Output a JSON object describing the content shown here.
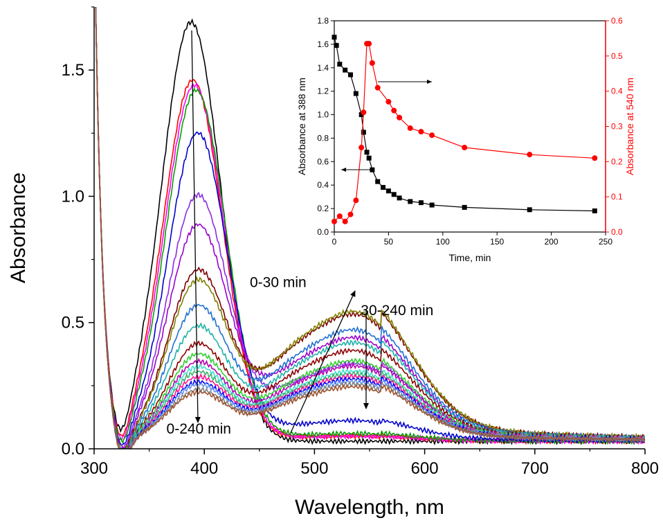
{
  "chart_data": [
    {
      "type": "line",
      "xlabel": "Wavelength, nm",
      "ylabel": "Absorbance",
      "xlim": [
        300,
        800
      ],
      "ylim": [
        0,
        1.75
      ],
      "xticks": [
        300,
        400,
        500,
        600,
        700,
        800
      ],
      "xtick_labels": [
        "300",
        "400",
        "500",
        "600",
        "700",
        "800"
      ],
      "yticks": [
        0,
        0.5,
        1.0,
        1.5
      ],
      "ytick_labels": [
        "0.0",
        "0.5",
        "1.0",
        "1.5"
      ],
      "grid": false,
      "annotations": [
        {
          "text": "0-240 min",
          "x": 395,
          "y": 0.06
        },
        {
          "text": "0-30 min",
          "x": 467,
          "y": 0.64
        },
        {
          "text": "30-240 min",
          "x": 575,
          "y": 0.53
        }
      ],
      "series": [
        {
          "color": "#000000",
          "peak1": 1.66,
          "band2": 0.0
        },
        {
          "color": "#ff0000",
          "peak1": 1.43,
          "band2": 0.02
        },
        {
          "color": "#ff00ff",
          "peak1": 1.41,
          "band2": 0.02
        },
        {
          "color": "#00a000",
          "peak1": 1.39,
          "band2": 0.03
        },
        {
          "color": "#0000cc",
          "peak1": 1.22,
          "band2": 0.08
        },
        {
          "color": "#8a2be2",
          "peak1": 0.97,
          "band2": 0.3
        },
        {
          "color": "#9900cc",
          "peak1": 0.85,
          "band2": 0.4
        },
        {
          "color": "#7b0000",
          "peak1": 0.67,
          "band2": 0.49
        },
        {
          "color": "#808000",
          "peak1": 0.63,
          "band2": 0.5
        },
        {
          "color": "#1f6fd1",
          "peak1": 0.53,
          "band2": 0.43
        },
        {
          "color": "#20b2aa",
          "peak1": 0.45,
          "band2": 0.38
        },
        {
          "color": "#8b0000",
          "peak1": 0.38,
          "band2": 0.35
        },
        {
          "color": "#32cd32",
          "peak1": 0.34,
          "band2": 0.31
        },
        {
          "color": "#b000b0",
          "peak1": 0.31,
          "band2": 0.29
        },
        {
          "color": "#40e0d0",
          "peak1": 0.29,
          "band2": 0.27
        },
        {
          "color": "#3cb371",
          "peak1": 0.27,
          "band2": 0.26
        },
        {
          "color": "#ff1493",
          "peak1": 0.25,
          "band2": 0.25
        },
        {
          "color": "#0000ff",
          "peak1": 0.23,
          "band2": 0.24
        },
        {
          "color": "#6495ed",
          "peak1": 0.22,
          "band2": 0.23
        },
        {
          "color": "#808080",
          "peak1": 0.2,
          "band2": 0.22
        },
        {
          "color": "#a0522d",
          "peak1": 0.19,
          "band2": 0.21
        }
      ]
    },
    {
      "type": "line",
      "xlabel": "Time, min",
      "ylabel": "Absorbance at 388 nm",
      "y2label": "Absorbance at 540 nm",
      "xlim": [
        0,
        250
      ],
      "ylim": [
        0,
        1.8
      ],
      "y2lim": [
        0,
        0.6
      ],
      "xticks": [
        0,
        50,
        100,
        150,
        200,
        250
      ],
      "xtick_labels": [
        "0",
        "50",
        "100",
        "150",
        "200",
        "250"
      ],
      "yticks": [
        0,
        0.2,
        0.4,
        0.6,
        0.8,
        1.0,
        1.2,
        1.4,
        1.6,
        1.8
      ],
      "ytick_labels": [
        "0.0",
        "0.2",
        "0.4",
        "0.6",
        "0.8",
        "1.0",
        "1.2",
        "1.4",
        "1.6",
        "1.8"
      ],
      "y2ticks": [
        0,
        0.1,
        0.2,
        0.3,
        0.4,
        0.5,
        0.6
      ],
      "y2tick_labels": [
        "0.0",
        "0.1",
        "0.2",
        "0.3",
        "0.4",
        "0.5",
        "0.6"
      ],
      "series": [
        {
          "axis": "left",
          "color": "#000000",
          "marker": "square",
          "x": [
            0,
            2,
            5,
            10,
            15,
            20,
            25,
            27,
            30,
            32,
            35,
            40,
            45,
            50,
            55,
            60,
            70,
            80,
            90,
            120,
            180,
            240
          ],
          "y": [
            1.66,
            1.59,
            1.43,
            1.38,
            1.34,
            1.18,
            1.0,
            0.85,
            0.68,
            0.63,
            0.53,
            0.43,
            0.38,
            0.35,
            0.32,
            0.29,
            0.26,
            0.25,
            0.23,
            0.21,
            0.19,
            0.18
          ]
        },
        {
          "axis": "right",
          "color": "#ff0000",
          "marker": "circle",
          "x": [
            0,
            5,
            10,
            15,
            20,
            25,
            27,
            30,
            32,
            35,
            40,
            50,
            55,
            60,
            70,
            80,
            90,
            120,
            180,
            240
          ],
          "y": [
            0.03,
            0.045,
            0.03,
            0.05,
            0.09,
            0.24,
            0.34,
            0.535,
            0.535,
            0.48,
            0.41,
            0.37,
            0.345,
            0.325,
            0.295,
            0.285,
            0.275,
            0.24,
            0.22,
            0.21
          ]
        }
      ]
    }
  ]
}
